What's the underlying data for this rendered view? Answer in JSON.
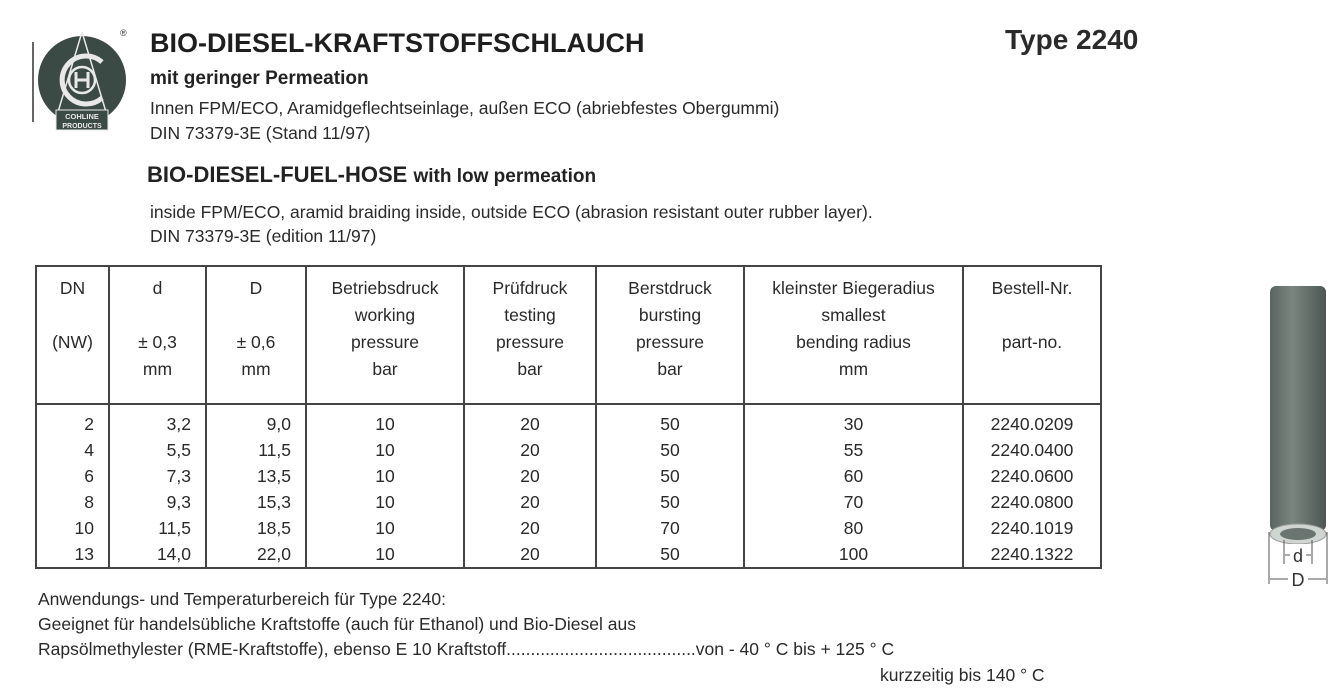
{
  "logo": {
    "text": "COHLINE PRODUCTS",
    "letters": "CH",
    "registered": "®"
  },
  "header": {
    "title": "BIO-DIESEL-KRAFTSTOFFSCHLAUCH",
    "type": "Type 2240",
    "subtitle_de": "mit geringer Permeation",
    "desc_de": "Innen FPM/ECO, Aramidgeflechtseinlage, außen ECO (abriebfestes Obergummi)",
    "norm_de": "DIN 73379-3E (Stand 11/97)",
    "title_en": "BIO-DIESEL-FUEL-HOSE",
    "title_en_suffix": "with low permeation",
    "desc_en": "inside FPM/ECO, aramid braiding inside, outside ECO (abrasion resistant outer rubber layer).",
    "norm_en": "DIN 73379-3E (edition 11/97)"
  },
  "table": {
    "headers": [
      [
        "DN",
        "",
        "(NW)",
        ""
      ],
      [
        "d",
        "",
        "± 0,3",
        "mm"
      ],
      [
        "D",
        "",
        "± 0,6",
        "mm"
      ],
      [
        "Betriebsdruck",
        "working",
        "pressure",
        "bar"
      ],
      [
        "Prüfdruck",
        "testing",
        "pressure",
        "bar"
      ],
      [
        "Berstdruck",
        "bursting",
        "pressure",
        "bar"
      ],
      [
        "kleinster Biegeradius",
        "smallest",
        "bending radius",
        "mm"
      ],
      [
        "Bestell-Nr.",
        "",
        "part-no.",
        ""
      ]
    ],
    "rows": [
      [
        "2",
        "3,2",
        "9,0",
        "10",
        "20",
        "50",
        "30",
        "2240.0209"
      ],
      [
        "4",
        "5,5",
        "11,5",
        "10",
        "20",
        "50",
        "55",
        "2240.0400"
      ],
      [
        "6",
        "7,3",
        "13,5",
        "10",
        "20",
        "50",
        "60",
        "2240.0600"
      ],
      [
        "8",
        "9,3",
        "15,3",
        "10",
        "20",
        "50",
        "70",
        "2240.0800"
      ],
      [
        "10",
        "11,5",
        "18,5",
        "10",
        "20",
        "70",
        "80",
        "2240.1019"
      ],
      [
        "13",
        "14,0",
        "22,0",
        "10",
        "20",
        "50",
        "100",
        "2240.1322"
      ]
    ]
  },
  "footer": {
    "line1": "Anwendungs- und Temperaturbereich für Type 2240:",
    "line2": "Geeignet für handelsübliche Kraftstoffe (auch für Ethanol)  und Bio-Diesel aus",
    "line3": "Rapsölmethylester (RME-Kraftstoffe), ebenso E 10 Kraftstoff.......................................von - 40 ° C bis + 125 ° C",
    "line4": "kurzzeitig bis 140 ° C"
  },
  "hose_image": {
    "label_d": "d",
    "label_D": "D"
  }
}
